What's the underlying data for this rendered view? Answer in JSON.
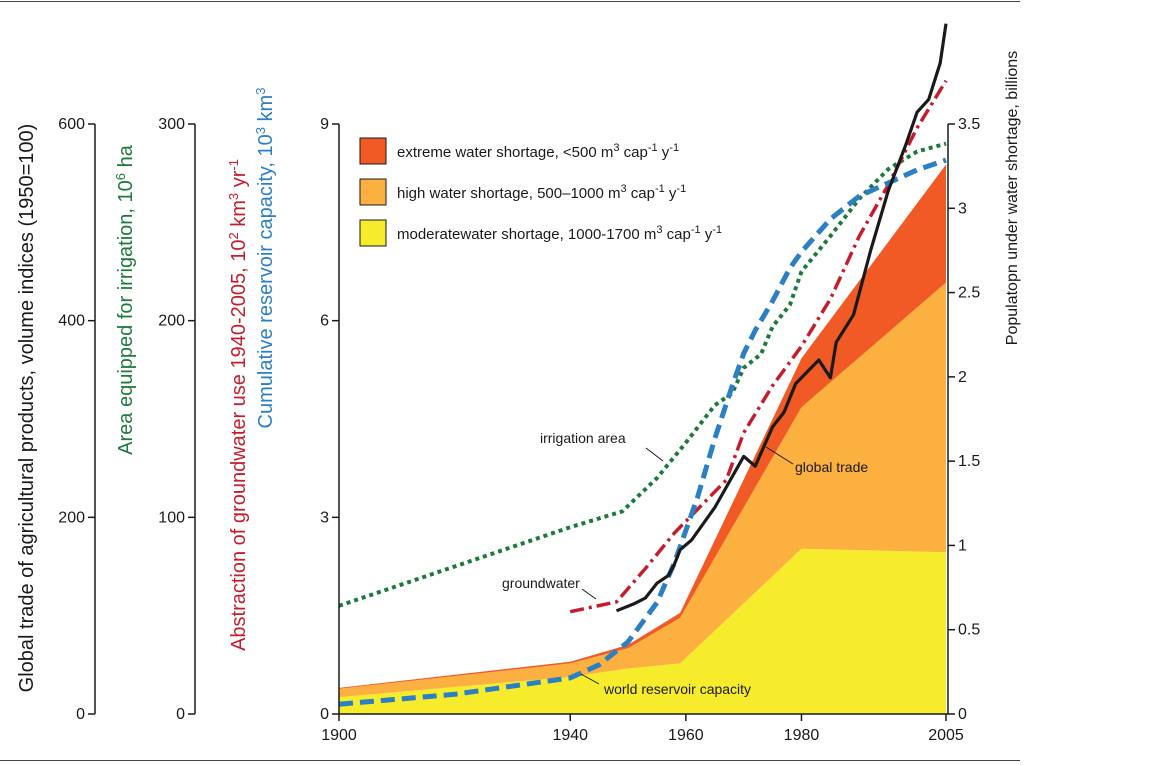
{
  "chart_data": {
    "type": "area",
    "x_ticks": [
      "1900",
      "1940",
      "1960",
      "1980",
      "2005"
    ],
    "axes": {
      "trade": {
        "label": "Global trade of agricultural products, volume indices (1950=100)",
        "ticks": [
          "0",
          "200",
          "400",
          "600"
        ],
        "color": "#1a1a1a",
        "range": [
          0,
          600
        ]
      },
      "irrigation": {
        "label": "Area equipped for irrigation, 10",
        "label_sup": "6",
        "label_tail": " ha",
        "ticks": [
          "0",
          "100",
          "200",
          "300"
        ],
        "color": "#1e7a3c",
        "range": [
          0,
          300
        ]
      },
      "groundwater": {
        "label": "Abstraction of groundwater use 1940-2005, 10",
        "label_sup": "2",
        "label_mid": " km",
        "label_sup2": "3",
        "label_mid2": " yr",
        "label_sup3": "-1",
        "color": "#c41e2c"
      },
      "reservoir": {
        "label": "Cumulative reservoir capacity, 10",
        "label_sup": "3",
        "label_mid": " km",
        "label_sup2": "3",
        "ticks": [
          "0",
          "3",
          "6",
          "9"
        ],
        "color": "#2b7fc4",
        "range": [
          0,
          9
        ]
      },
      "population": {
        "label": "Populatopn under water shortage, billions",
        "ticks": [
          "0",
          "0.5",
          "1",
          "1.5",
          "2",
          "2.5",
          "3",
          "3.5"
        ],
        "color": "#1a1a1a",
        "range": [
          0,
          3.5
        ]
      }
    },
    "legend": [
      {
        "key": "extreme",
        "color": "#f15a24",
        "text": "extreme water shortage, <500 m",
        "sups": [
          [
            "3",
            " cap"
          ],
          [
            "-1",
            " y"
          ],
          [
            "-1",
            ""
          ]
        ]
      },
      {
        "key": "high",
        "color": "#fbb040",
        "text": "high water shortage, 500–1000 m",
        "sups": [
          [
            "3",
            " cap"
          ],
          [
            "-1",
            " y"
          ],
          [
            "-1",
            ""
          ]
        ]
      },
      {
        "key": "moderate",
        "color": "#f7ec2c",
        "text": "moderatewater shortage, 1000-1700 m",
        "sups": [
          [
            "3",
            " cap"
          ],
          [
            "-1",
            " y"
          ],
          [
            "-1",
            ""
          ]
        ]
      }
    ],
    "annotations": {
      "irrigation": "irrigation area",
      "global_trade": "global trade",
      "groundwater": "groundwater",
      "reservoir": "world reservoir capacity"
    },
    "areas": {
      "year": [
        1900,
        1940,
        1950,
        1959,
        1980,
        2005
      ],
      "moderate": [
        0.1,
        0.22,
        0.27,
        0.3,
        0.98,
        0.96
      ],
      "high": [
        0.05,
        0.08,
        0.12,
        0.27,
        0.84,
        1.6
      ],
      "extreme": [
        0.005,
        0.01,
        0.02,
        0.03,
        0.29,
        0.7
      ]
    },
    "series": {
      "irrigation_area": {
        "unit": "10^6 ha",
        "x": [
          1900,
          1920,
          1940,
          1949,
          1955,
          1960,
          1965,
          1968,
          1970,
          1973,
          1975,
          1978,
          1980,
          1985,
          1990,
          1995,
          2000,
          2005
        ],
        "y": [
          55,
          75,
          95,
          103,
          120,
          138,
          157,
          163,
          176,
          183,
          197,
          208,
          225,
          243,
          262,
          277,
          286,
          290
        ]
      },
      "groundwater": {
        "unit": "10^2 km^3/yr",
        "x": [
          1940,
          1948,
          1953,
          1958,
          1962,
          1967,
          1970,
          1975,
          1980,
          1985,
          1990,
          1995,
          2000,
          2005
        ],
        "y": [
          52,
          57,
          74,
          92,
          104,
          119,
          143,
          167,
          187,
          211,
          243,
          269,
          298,
          322
        ]
      },
      "reservoir_capacity": {
        "unit": "10^3 km^3",
        "x": [
          1900,
          1920,
          1940,
          1945,
          1950,
          1955,
          1958,
          1962,
          1965,
          1968,
          1970,
          1972,
          1975,
          1978,
          1980,
          1985,
          1990,
          1995,
          2000,
          2005
        ],
        "y": [
          0.15,
          0.3,
          0.55,
          0.75,
          1.1,
          1.7,
          2.3,
          3.3,
          4.2,
          5.0,
          5.5,
          5.85,
          6.3,
          6.8,
          7.05,
          7.55,
          7.9,
          8.1,
          8.3,
          8.45
        ]
      },
      "global_trade": {
        "unit": "index (1950=100)",
        "x": [
          1948,
          1951,
          1953,
          1955,
          1957,
          1958,
          1959,
          1961,
          1965,
          1970,
          1972,
          1975,
          1977,
          1979,
          1983,
          1985,
          1986,
          1989,
          1992,
          1995,
          1998,
          2000,
          2002,
          2004,
          2005
        ],
        "y": [
          105,
          112,
          118,
          133,
          141,
          152,
          167,
          177,
          210,
          262,
          252,
          292,
          307,
          336,
          360,
          342,
          378,
          406,
          472,
          532,
          578,
          612,
          625,
          662,
          702
        ]
      }
    }
  }
}
